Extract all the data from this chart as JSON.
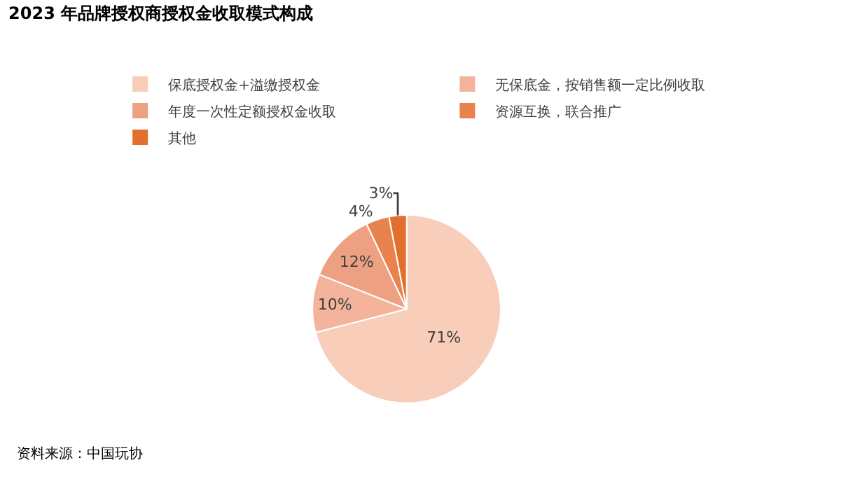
{
  "chart_data": {
    "type": "pie",
    "title": "2023 年品牌授权商授权金收取模式构成",
    "categories": [
      "保底授权金+溢缴授权金",
      "无保底金，按销售额一定比例收取",
      "年度一次性定额授权金收取",
      "资源互换，联合推广",
      "其他"
    ],
    "values": [
      71,
      10,
      12,
      4,
      3
    ],
    "value_labels": [
      "71%",
      "10%",
      "12%",
      "4%",
      "3%"
    ],
    "colors": [
      "#f8cdb9",
      "#f3b49b",
      "#eda182",
      "#e8834e",
      "#e26f2d"
    ],
    "legend": "top",
    "annotations": [
      "资料来源：中国玩协"
    ]
  }
}
